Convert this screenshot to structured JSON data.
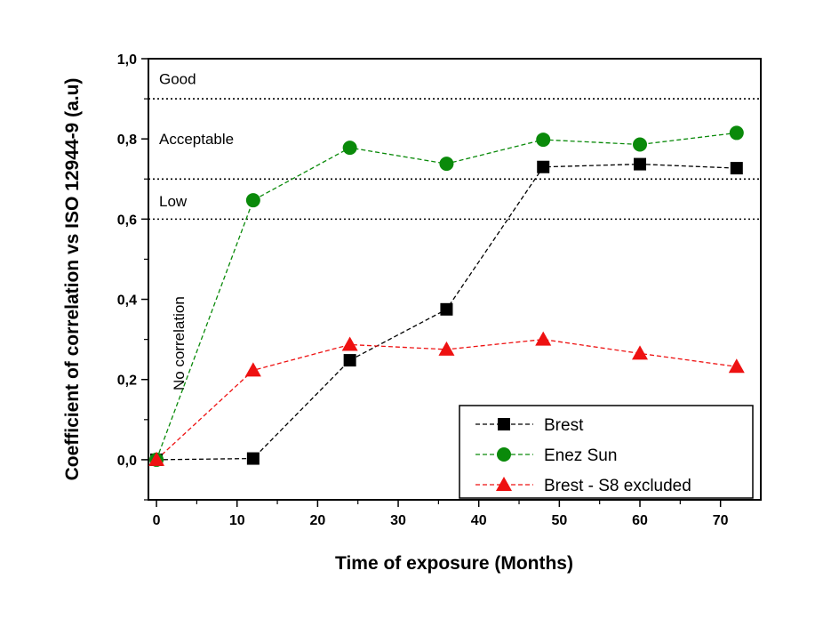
{
  "chart_data": {
    "type": "line",
    "xlabel": "Time of exposure (Months)",
    "ylabel": "Coefficient of correlation vs ISO 12944-9 (a.u)",
    "xlim": [
      -1,
      75
    ],
    "ylim": [
      -0.1,
      1.0
    ],
    "x_ticks": [
      0,
      10,
      20,
      30,
      40,
      50,
      60,
      70
    ],
    "x_tick_labels": [
      "0",
      "10",
      "20",
      "30",
      "40",
      "50",
      "60",
      "70"
    ],
    "y_ticks": [
      0.0,
      0.2,
      0.4,
      0.6,
      0.8,
      1.0
    ],
    "y_tick_labels": [
      "0,0",
      "0,2",
      "0,4",
      "0,6",
      "0,8",
      "1,0"
    ],
    "grid": false,
    "legend_position": "bottom-right",
    "thresholds": [
      0.9,
      0.7,
      0.6
    ],
    "zones": [
      {
        "label": "Good",
        "y": 0.95
      },
      {
        "label": "Acceptable",
        "y": 0.8
      },
      {
        "label": "Low",
        "y": 0.645
      },
      {
        "label": "No correlation",
        "y": 0.29,
        "rotated": true
      }
    ],
    "series": [
      {
        "name": "Brest",
        "marker": "square",
        "color": "#000000",
        "x": [
          0,
          12,
          24,
          36,
          48,
          60,
          72
        ],
        "values": [
          0.0,
          0.003,
          0.248,
          0.375,
          0.73,
          0.737,
          0.727
        ]
      },
      {
        "name": "Enez Sun",
        "marker": "circle",
        "color": "#0a8a0a",
        "x": [
          0,
          12,
          24,
          36,
          48,
          60,
          72
        ],
        "values": [
          0.0,
          0.647,
          0.778,
          0.738,
          0.798,
          0.786,
          0.815
        ]
      },
      {
        "name": "Brest - S8 excluded",
        "marker": "triangle",
        "color": "#ee1111",
        "x": [
          0,
          12,
          24,
          36,
          48,
          60,
          72
        ],
        "values": [
          0.0,
          0.223,
          0.287,
          0.275,
          0.3,
          0.265,
          0.232
        ]
      }
    ]
  }
}
